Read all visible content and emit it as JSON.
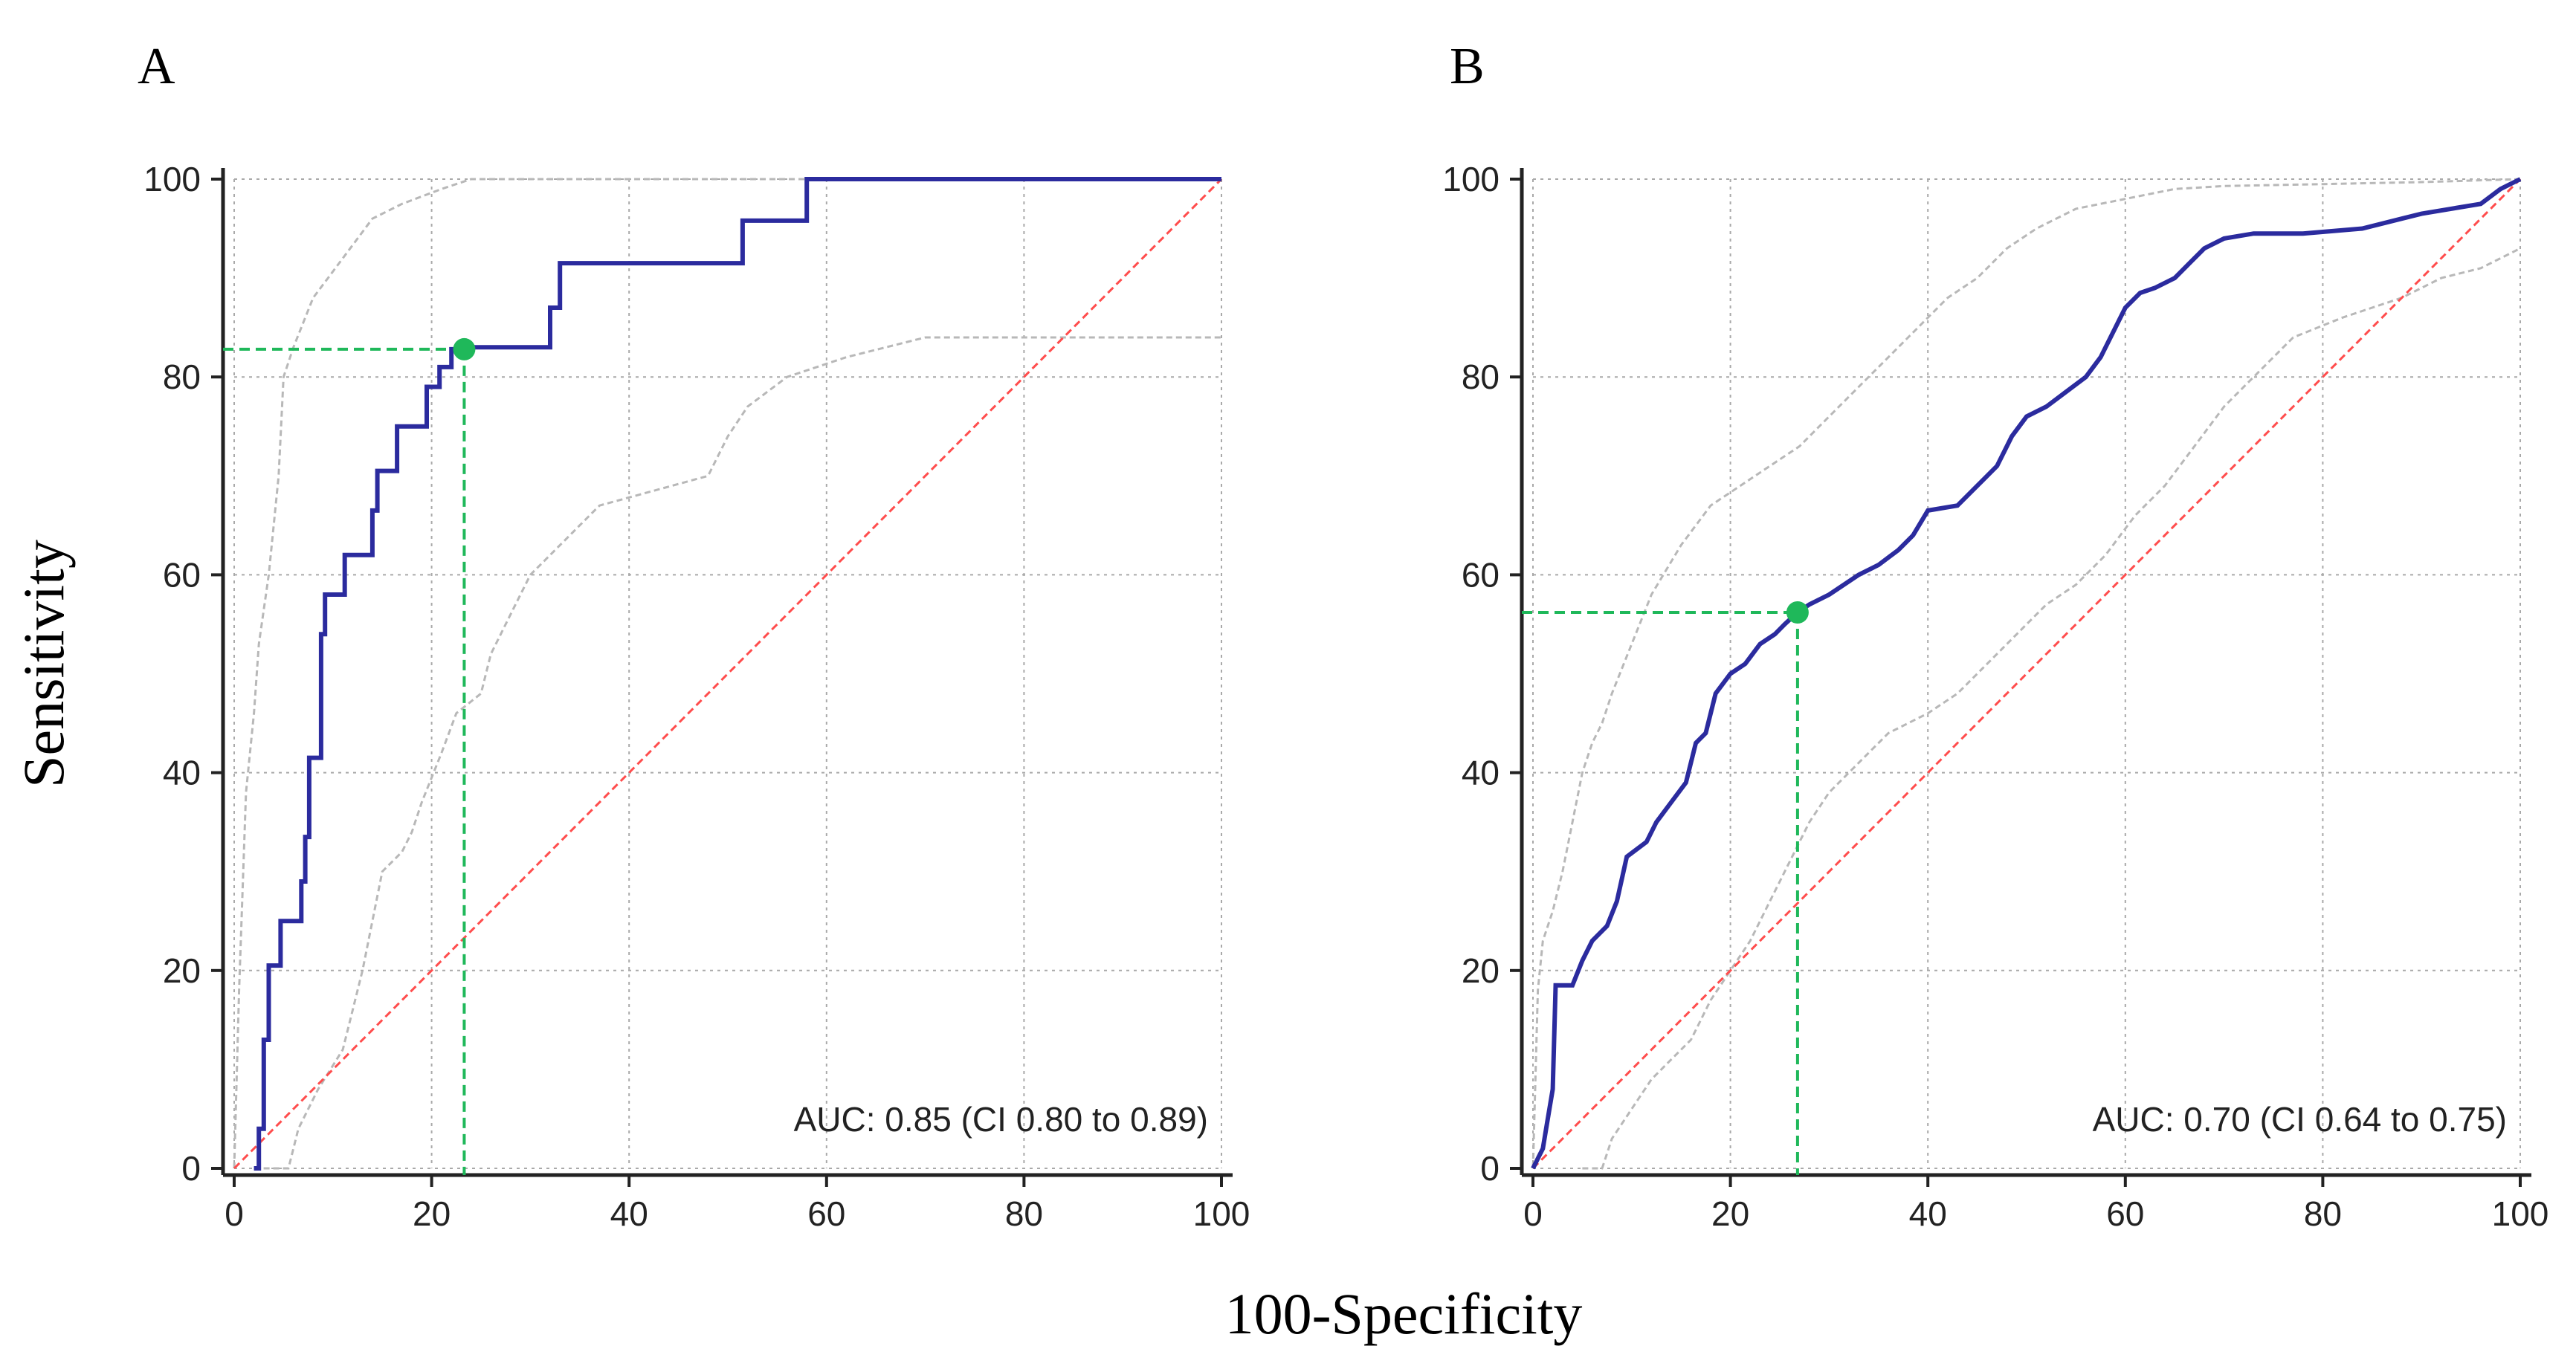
{
  "figure": {
    "xlabel": "100-Specificity",
    "ylabel": "Sensitivity"
  },
  "chart_data": [
    {
      "type": "line",
      "panel": "A",
      "xlim": [
        0,
        100
      ],
      "ylim": [
        0,
        100
      ],
      "xticks": [
        0,
        20,
        40,
        60,
        80,
        100
      ],
      "yticks": [
        0,
        20,
        40,
        60,
        80,
        100
      ],
      "grid": true,
      "auc_label": "AUC: 0.85 (CI 0.80 to 0.89)",
      "colors": {
        "roc": "#2b2b9e",
        "ci": "#b8b8b8",
        "diag": "#ff4d4d",
        "cutoff": "#1fb85a"
      },
      "cutoff": {
        "x": 23.3,
        "y": 82.8
      },
      "roc": [
        [
          2,
          0
        ],
        [
          2.5,
          0
        ],
        [
          2.5,
          4
        ],
        [
          3,
          4
        ],
        [
          3,
          13
        ],
        [
          3.5,
          13
        ],
        [
          3.5,
          20.5
        ],
        [
          4.7,
          20.5
        ],
        [
          4.7,
          25
        ],
        [
          6.8,
          25
        ],
        [
          6.8,
          29
        ],
        [
          7.2,
          29
        ],
        [
          7.2,
          33.5
        ],
        [
          7.6,
          33.5
        ],
        [
          7.6,
          41.5
        ],
        [
          8.8,
          41.5
        ],
        [
          8.8,
          54
        ],
        [
          9.2,
          54
        ],
        [
          9.2,
          58
        ],
        [
          11.2,
          58
        ],
        [
          11.2,
          62
        ],
        [
          14,
          62
        ],
        [
          14,
          66.5
        ],
        [
          14.5,
          66.5
        ],
        [
          14.5,
          70.5
        ],
        [
          16.5,
          70.5
        ],
        [
          16.5,
          75
        ],
        [
          19.5,
          75
        ],
        [
          19.5,
          79
        ],
        [
          20.8,
          79
        ],
        [
          20.8,
          81
        ],
        [
          22,
          81
        ],
        [
          22,
          82.8
        ],
        [
          23.3,
          82.8
        ],
        [
          23.3,
          83
        ],
        [
          32,
          83
        ],
        [
          32,
          87
        ],
        [
          33,
          87
        ],
        [
          33,
          91.5
        ],
        [
          51.5,
          91.5
        ],
        [
          51.5,
          95.8
        ],
        [
          58,
          95.8
        ],
        [
          58,
          100
        ],
        [
          100,
          100
        ]
      ],
      "ci_upper": [
        [
          0,
          0
        ],
        [
          0.5,
          18
        ],
        [
          1.2,
          38
        ],
        [
          2,
          46
        ],
        [
          2.5,
          53
        ],
        [
          3.5,
          60
        ],
        [
          4.5,
          70
        ],
        [
          5,
          80
        ],
        [
          6,
          83
        ],
        [
          8,
          88
        ],
        [
          9.5,
          90
        ],
        [
          11,
          92
        ],
        [
          12.5,
          94
        ],
        [
          14,
          96
        ],
        [
          17,
          97.5
        ],
        [
          21,
          99
        ],
        [
          24,
          100
        ],
        [
          100,
          100
        ]
      ],
      "ci_lower": [
        [
          2,
          0
        ],
        [
          5.5,
          0
        ],
        [
          6.5,
          4
        ],
        [
          8.5,
          8
        ],
        [
          11,
          12
        ],
        [
          12,
          16
        ],
        [
          13,
          20
        ],
        [
          14,
          25
        ],
        [
          15,
          30
        ],
        [
          17,
          32
        ],
        [
          18,
          34
        ],
        [
          19,
          37
        ],
        [
          21,
          42
        ],
        [
          22.5,
          46
        ],
        [
          25,
          48
        ],
        [
          26,
          52
        ],
        [
          28,
          56
        ],
        [
          30,
          60
        ],
        [
          34,
          64
        ],
        [
          37,
          67
        ],
        [
          48,
          70
        ],
        [
          50,
          74
        ],
        [
          52,
          77
        ],
        [
          56,
          80
        ],
        [
          62,
          82
        ],
        [
          70,
          84
        ],
        [
          100,
          84
        ]
      ]
    },
    {
      "type": "line",
      "panel": "B",
      "xlim": [
        0,
        100
      ],
      "ylim": [
        0,
        100
      ],
      "xticks": [
        0,
        20,
        40,
        60,
        80,
        100
      ],
      "yticks": [
        0,
        20,
        40,
        60,
        80,
        100
      ],
      "grid": true,
      "auc_label": "AUC: 0.70 (CI 0.64 to 0.75)",
      "colors": {
        "roc": "#2b2b9e",
        "ci": "#b8b8b8",
        "diag": "#ff4d4d",
        "cutoff": "#1fb85a"
      },
      "cutoff": {
        "x": 26.8,
        "y": 56.2
      },
      "roc": [
        [
          0,
          0
        ],
        [
          0.5,
          1
        ],
        [
          1,
          2
        ],
        [
          1.5,
          5
        ],
        [
          2,
          8
        ],
        [
          2.3,
          18.5
        ],
        [
          4,
          18.5
        ],
        [
          5,
          21
        ],
        [
          6,
          23
        ],
        [
          7.5,
          24.5
        ],
        [
          8.5,
          27
        ],
        [
          9.5,
          31.5
        ],
        [
          11.5,
          33
        ],
        [
          12.5,
          35
        ],
        [
          14,
          37
        ],
        [
          15.5,
          39
        ],
        [
          16.5,
          43
        ],
        [
          17.5,
          44
        ],
        [
          18.5,
          48
        ],
        [
          20,
          50
        ],
        [
          21.5,
          51
        ],
        [
          23,
          53
        ],
        [
          24.5,
          54
        ],
        [
          25.5,
          55
        ],
        [
          26.8,
          56.2
        ],
        [
          28,
          57
        ],
        [
          30,
          58
        ],
        [
          33,
          60
        ],
        [
          35,
          61
        ],
        [
          37,
          62.5
        ],
        [
          38.5,
          64
        ],
        [
          40,
          66.5
        ],
        [
          43,
          67
        ],
        [
          45,
          69
        ],
        [
          47,
          71
        ],
        [
          48.5,
          74
        ],
        [
          50,
          76
        ],
        [
          52,
          77
        ],
        [
          54,
          78.5
        ],
        [
          56,
          80
        ],
        [
          57.5,
          82
        ],
        [
          59,
          85
        ],
        [
          60,
          87
        ],
        [
          61.5,
          88.5
        ],
        [
          63,
          89
        ],
        [
          65,
          90
        ],
        [
          66.5,
          91.5
        ],
        [
          68,
          93
        ],
        [
          70,
          94
        ],
        [
          73,
          94.5
        ],
        [
          78,
          94.5
        ],
        [
          84,
          95
        ],
        [
          88,
          96
        ],
        [
          90,
          96.5
        ],
        [
          93,
          97
        ],
        [
          96,
          97.5
        ],
        [
          98,
          99
        ],
        [
          100,
          100
        ]
      ],
      "ci_upper": [
        [
          0,
          0
        ],
        [
          0.5,
          18
        ],
        [
          1,
          23
        ],
        [
          2,
          26
        ],
        [
          3,
          30
        ],
        [
          4,
          35
        ],
        [
          5,
          40
        ],
        [
          6,
          43
        ],
        [
          7,
          45
        ],
        [
          8,
          48
        ],
        [
          10,
          53
        ],
        [
          12,
          58
        ],
        [
          15,
          63
        ],
        [
          18,
          67
        ],
        [
          21,
          69
        ],
        [
          24,
          71
        ],
        [
          27,
          73
        ],
        [
          30,
          76
        ],
        [
          33,
          79
        ],
        [
          36,
          82
        ],
        [
          39,
          85
        ],
        [
          42,
          88
        ],
        [
          45,
          90
        ],
        [
          48,
          93
        ],
        [
          51,
          95
        ],
        [
          55,
          97
        ],
        [
          60,
          98
        ],
        [
          65,
          99
        ],
        [
          70,
          99.3
        ],
        [
          80,
          99.5
        ],
        [
          90,
          99.7
        ],
        [
          100,
          100
        ]
      ],
      "ci_lower": [
        [
          5,
          0
        ],
        [
          7,
          0
        ],
        [
          8,
          3
        ],
        [
          10,
          6
        ],
        [
          12,
          9
        ],
        [
          14,
          11
        ],
        [
          16,
          13
        ],
        [
          18,
          17
        ],
        [
          20,
          20
        ],
        [
          22,
          23
        ],
        [
          24,
          27
        ],
        [
          26,
          31
        ],
        [
          28,
          35
        ],
        [
          30,
          38
        ],
        [
          33,
          41
        ],
        [
          36,
          44
        ],
        [
          40,
          46
        ],
        [
          43,
          48
        ],
        [
          46,
          51
        ],
        [
          49,
          54
        ],
        [
          52,
          57
        ],
        [
          55,
          59
        ],
        [
          58,
          62
        ],
        [
          61,
          66
        ],
        [
          64,
          69
        ],
        [
          67,
          73
        ],
        [
          70,
          77
        ],
        [
          73,
          80
        ],
        [
          77,
          84
        ],
        [
          82,
          86
        ],
        [
          88,
          88
        ],
        [
          92,
          90
        ],
        [
          96,
          91
        ],
        [
          100,
          93
        ]
      ]
    }
  ]
}
